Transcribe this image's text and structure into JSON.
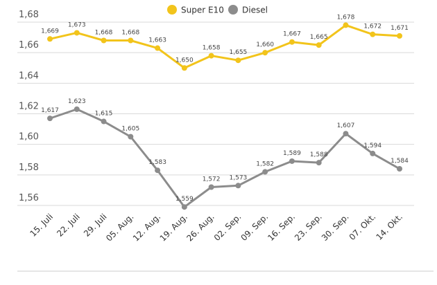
{
  "chart_data": {
    "type": "line",
    "categories": [
      "15. Juli",
      "22. Juli",
      "29. Juli",
      "05. Aug.",
      "12. Aug.",
      "19. Aug.",
      "26. Aug.",
      "02. Sep.",
      "09. Sep.",
      "16. Sep.",
      "23. Sep.",
      "30. Sep.",
      "07. Okt.",
      "14. Okt."
    ],
    "series": [
      {
        "name": "Super E10",
        "color": "#f2c41b",
        "values": [
          1.669,
          1.673,
          1.668,
          1.668,
          1.663,
          1.65,
          1.658,
          1.655,
          1.66,
          1.667,
          1.665,
          1.678,
          1.672,
          1.671
        ],
        "labels": [
          "1,669",
          "1,673",
          "1,668",
          "1,668",
          "1,663",
          "1,650",
          "1,658",
          "1,655",
          "1,660",
          "1,667",
          "1,665",
          "1,678",
          "1,672",
          "1,671"
        ]
      },
      {
        "name": "Diesel",
        "color": "#8c8c8c",
        "values": [
          1.617,
          1.623,
          1.615,
          1.605,
          1.583,
          1.559,
          1.572,
          1.573,
          1.582,
          1.589,
          1.588,
          1.607,
          1.594,
          1.584
        ],
        "labels": [
          "1,617",
          "1,623",
          "1,615",
          "1,605",
          "1,583",
          "1,559",
          "1,572",
          "1,573",
          "1,582",
          "1,589",
          "1,588",
          "1,607",
          "1,594",
          "1,584"
        ]
      }
    ],
    "yticks": [
      1.56,
      1.58,
      1.6,
      1.62,
      1.64,
      1.66,
      1.68
    ],
    "ytick_labels": [
      "1,56",
      "1,58",
      "1,60",
      "1,62",
      "1,64",
      "1,66",
      "1,68"
    ],
    "ylim": [
      1.56,
      1.68
    ],
    "grid": true,
    "legend_position": "top-center"
  }
}
